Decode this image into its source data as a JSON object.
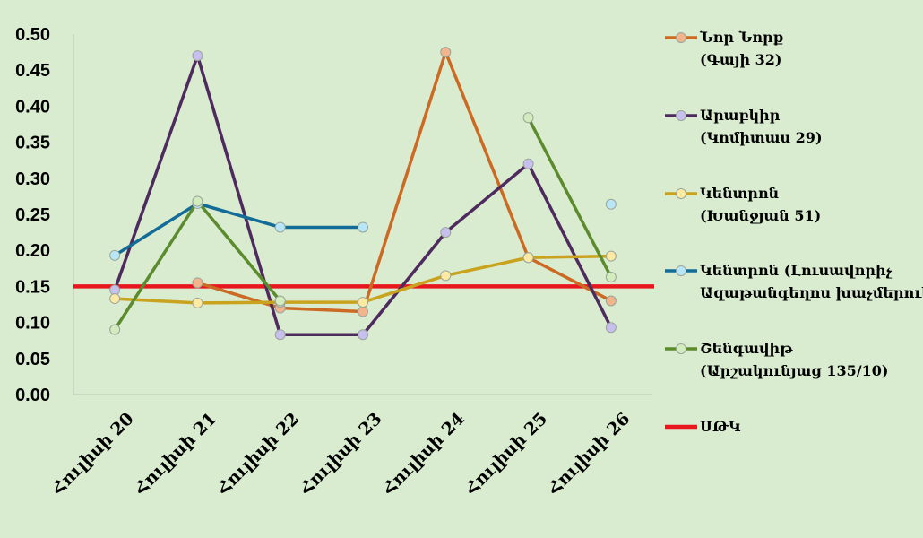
{
  "chart_data": {
    "type": "line",
    "title": "",
    "xlabel": "",
    "ylabel": "",
    "ylim": [
      0,
      0.5
    ],
    "yticks": [
      "0.00",
      "0.05",
      "0.10",
      "0.15",
      "0.20",
      "0.25",
      "0.30",
      "0.35",
      "0.40",
      "0.45",
      "0.50"
    ],
    "categories": [
      "Հուլիսի 20",
      "Հուլիսի 21",
      "Հուլիսի 22",
      "Հուլիսի 23",
      "Հուլիսի 24",
      "Հուլիսի 25",
      "Հուլիսի 26"
    ],
    "series": [
      {
        "name": "Նոր Նորք",
        "name2": "(Գայի 32)",
        "color": "#cc6a23",
        "marker": "#f2b48c",
        "values": [
          null,
          0.155,
          0.12,
          0.115,
          0.475,
          0.19,
          0.13
        ]
      },
      {
        "name": "Արաբկիր",
        "name2": "(Կոմիտաս 29)",
        "color": "#4e2a5e",
        "marker": "#c7bfee",
        "values": [
          0.145,
          0.47,
          0.083,
          0.083,
          0.225,
          0.32,
          0.093
        ]
      },
      {
        "name": "Կենտրոն",
        "name2": "(Խանջյան 51)",
        "color": "#c9a21e",
        "marker": "#fbe9a4",
        "values": [
          0.133,
          0.127,
          0.128,
          0.128,
          0.165,
          0.19,
          0.192
        ]
      },
      {
        "name": "Կենտրոն (Լուսավորիչ",
        "name2": "Ազաթանգեղոս խաչմերուկ)",
        "color": "#136b97",
        "marker": "#b8e6f6",
        "values": [
          0.193,
          0.265,
          0.232,
          0.232,
          null,
          null,
          0.264
        ]
      },
      {
        "name": "Շենգավիթ",
        "name2": "(Արշակունյաց 135/10)",
        "color": "#5c8b2e",
        "marker": "#d2ecbe",
        "values": [
          0.09,
          0.268,
          0.13,
          null,
          null,
          0.384,
          0.163
        ]
      }
    ],
    "reference": {
      "name": "ՍԹԿ",
      "value": 0.15,
      "color": "#e8171e"
    }
  }
}
